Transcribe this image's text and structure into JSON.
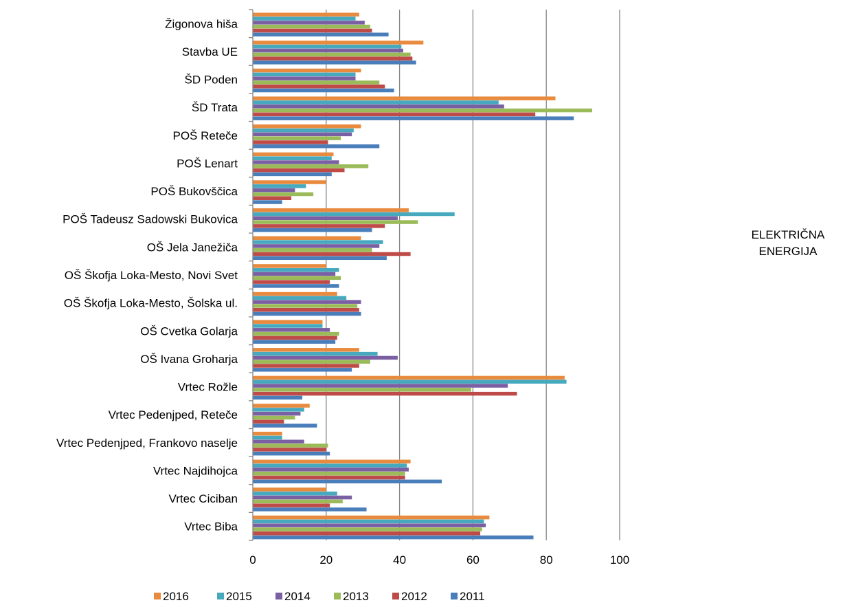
{
  "side_title": [
    "ELEKTRIČNA",
    "ENERGIJA"
  ],
  "chart_data": {
    "type": "bar",
    "orientation": "horizontal",
    "title": "",
    "xlabel": "",
    "ylabel": "",
    "xlim": [
      0,
      100
    ],
    "x_ticks": [
      0,
      20,
      40,
      60,
      80,
      100
    ],
    "grid": "vertical major gridlines",
    "legend_position": "bottom",
    "categories": [
      "Žigonova hiša",
      "Stavba UE",
      "ŠD Poden",
      "ŠD Trata",
      "POŠ Reteče",
      "POŠ Lenart",
      "POŠ Bukovščica",
      "POŠ Tadeusz Sadowski Bukovica",
      "OŠ Jela Janežiča",
      "OŠ Škofja Loka-Mesto, Novi Svet",
      "OŠ Škofja Loka-Mesto, Šolska ul.",
      "OŠ Cvetka Golarja",
      "OŠ Ivana Groharja",
      "Vrtec Rožle",
      "Vrtec Pedenjped, Reteče",
      "Vrtec Pedenjped, Frankovo naselje",
      "Vrtec Najdihojca",
      "Vrtec Ciciban",
      "Vrtec Biba"
    ],
    "series": [
      {
        "name": "2016",
        "color": "#E98B3F",
        "values": [
          29,
          46.5,
          29.5,
          82.5,
          29.5,
          22,
          20,
          42.5,
          29.5,
          20,
          23,
          19,
          29,
          85,
          15.5,
          8,
          43,
          20,
          64.5
        ]
      },
      {
        "name": "2015",
        "color": "#46A9BE",
        "values": [
          28,
          40.5,
          28,
          67,
          27.5,
          21.5,
          14.5,
          55,
          35.5,
          23.5,
          25.5,
          19,
          34,
          85.5,
          14,
          8,
          42,
          23,
          63
        ]
      },
      {
        "name": "2014",
        "color": "#7B5FA3",
        "values": [
          30.5,
          41,
          28,
          68.5,
          27,
          23.5,
          11.5,
          39.5,
          34.5,
          22.5,
          29.5,
          21,
          39.5,
          69.5,
          13,
          14,
          42.5,
          27,
          63.5
        ]
      },
      {
        "name": "2013",
        "color": "#9BBB59",
        "values": [
          32,
          43,
          34.5,
          92.5,
          24,
          31.5,
          16.5,
          45,
          32.5,
          24,
          28.5,
          23.5,
          32,
          59.5,
          11.5,
          20.5,
          41.5,
          24.5,
          62.5
        ]
      },
      {
        "name": "2012",
        "color": "#BE4B48",
        "values": [
          32.5,
          43.5,
          36,
          77,
          20.5,
          25,
          10.5,
          36,
          43,
          21,
          29,
          23,
          29,
          72,
          8.5,
          20,
          41.5,
          21,
          62
        ]
      },
      {
        "name": "2011",
        "color": "#4A7EBB",
        "values": [
          37,
          44.5,
          38.5,
          87.5,
          34.5,
          21.5,
          8,
          32.5,
          36.5,
          23.5,
          29.5,
          22.5,
          27,
          13.5,
          17.5,
          21,
          51.5,
          31,
          76.5
        ]
      }
    ]
  }
}
